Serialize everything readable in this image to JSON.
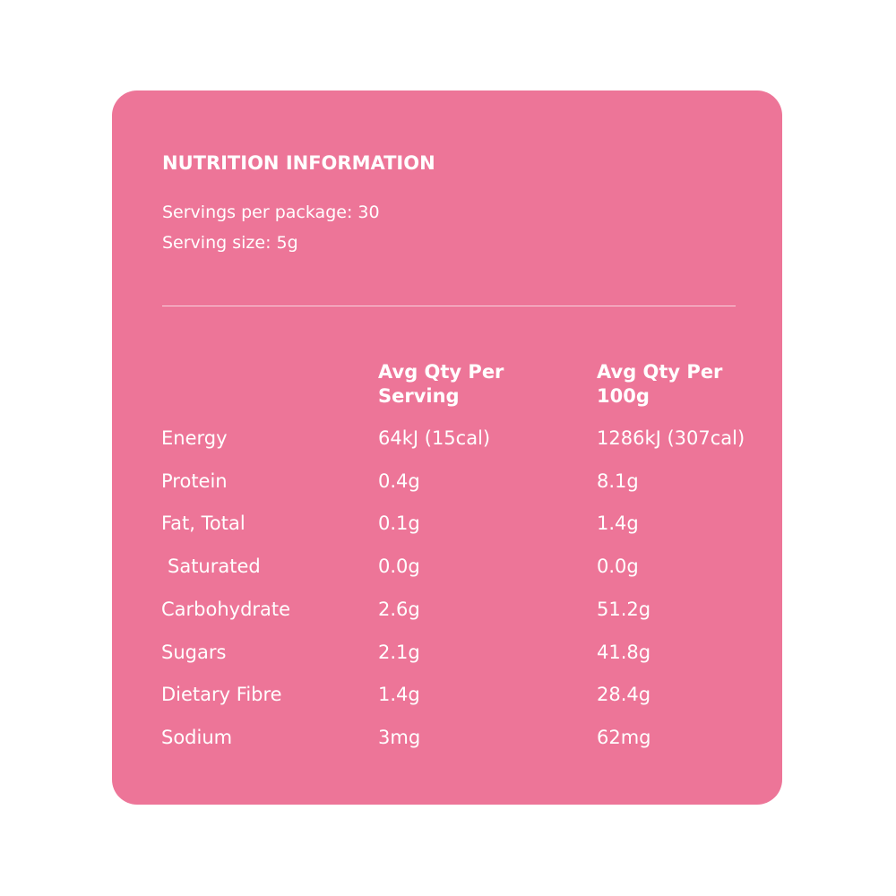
{
  "header": {
    "title": "NUTRITION INFORMATION",
    "servings_per_package": "Servings per package: 30",
    "serving_size": "Serving size: 5g"
  },
  "table": {
    "columns": [
      "Avg Qty Per Serving",
      "Avg Qty Per 100g"
    ],
    "rows": [
      [
        "Energy",
        "64kJ (15cal)",
        "1286kJ (307cal)"
      ],
      [
        "Protein",
        "0.4g",
        "8.1g"
      ],
      [
        "Fat, Total",
        "0.1g",
        "1.4g"
      ],
      [
        "Saturated",
        "0.0g",
        "0.0g"
      ],
      [
        "Carbohydrate",
        "2.6g",
        "51.2g"
      ],
      [
        "Sugars",
        "2.1g",
        "41.8g"
      ],
      [
        "Dietary Fibre",
        "1.4g",
        "28.4g"
      ],
      [
        "Sodium",
        "3mg",
        "62mg"
      ]
    ]
  }
}
